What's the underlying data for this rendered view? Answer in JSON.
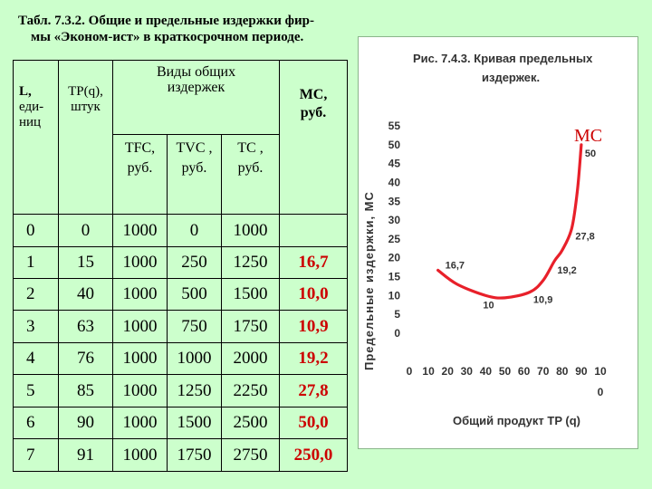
{
  "caption": {
    "line1": "Табл. 7.3.2. Общие и предельные издержки фир-",
    "line2": "мы «Эконом-ист» в краткосрочном периоде."
  },
  "table": {
    "headers": {
      "L_1": "L,",
      "L_2": "еди-",
      "L_3": "ниц",
      "TP_1": "TP(q),",
      "TP_2": "штук",
      "group_1": "Виды общих",
      "group_2": "издержек",
      "TFC_1": "TFC,",
      "TFC_2": "руб.",
      "TVC_1": "TVC ,",
      "TVC_2": "руб.",
      "TC_1": "TC ,",
      "TC_2": "руб.",
      "MC_1": "MC,",
      "MC_2": "руб."
    },
    "rows": [
      {
        "L": "0",
        "TP": "0",
        "TFC": "1000",
        "TVC": "0",
        "TC": "1000",
        "MC": ""
      },
      {
        "L": "1",
        "TP": "15",
        "TFC": "1000",
        "TVC": "250",
        "TC": "1250",
        "MC": "16,7"
      },
      {
        "L": "2",
        "TP": "40",
        "TFC": "1000",
        "TVC": "500",
        "TC": "1500",
        "MC": "10,0"
      },
      {
        "L": "3",
        "TP": "63",
        "TFC": "1000",
        "TVC": "750",
        "TC": "1750",
        "MC": "10,9"
      },
      {
        "L": "4",
        "TP": "76",
        "TFC": "1000",
        "TVC": "1000",
        "TC": "2000",
        "MC": "19,2"
      },
      {
        "L": "5",
        "TP": "85",
        "TFC": "1000",
        "TVC": "1250",
        "TC": "2250",
        "MC": "27,8"
      },
      {
        "L": "6",
        "TP": "90",
        "TFC": "1000",
        "TVC": "1500",
        "TC": "2500",
        "MC": "50,0"
      },
      {
        "L": "7",
        "TP": "91",
        "TFC": "1000",
        "TVC": "1750",
        "TC": "2750",
        "MC": "250,0"
      }
    ]
  },
  "chart": {
    "title_1": "Рис. 7.4.3. Кривая предельных",
    "title_2": "издержек.",
    "curve_label": "MC",
    "colors": {
      "curve": "#e8202a",
      "text": "#333333",
      "label": "#cc0000"
    }
  },
  "chart_data": {
    "type": "line",
    "title": "Рис. 7.4.3. Кривая предельных издержек.",
    "xlabel": "Общий продукт TP (q)",
    "ylabel": "Предельные издержки, MC",
    "xlim": [
      0,
      100
    ],
    "ylim": [
      0,
      55
    ],
    "x_ticks": [
      "0",
      "10",
      "20",
      "30",
      "40",
      "50",
      "60",
      "70",
      "80",
      "90",
      "10",
      "0"
    ],
    "y_ticks": [
      "0",
      "5",
      "10",
      "15",
      "20",
      "25",
      "30",
      "35",
      "40",
      "45",
      "50",
      "55"
    ],
    "series": [
      {
        "name": "MC",
        "x": [
          15,
          25,
          40,
          50,
          63,
          70,
          76,
          80,
          85,
          88,
          90
        ],
        "y": [
          16.7,
          13,
          10,
          9.4,
          10.9,
          14,
          19.2,
          22,
          27.8,
          38,
          50
        ]
      }
    ],
    "annotations": [
      {
        "text": "16,7",
        "x": 15,
        "y": 16.7
      },
      {
        "text": "10",
        "x": 40,
        "y": 10
      },
      {
        "text": "10,9",
        "x": 63,
        "y": 10.9
      },
      {
        "text": "19,2",
        "x": 76,
        "y": 19.2
      },
      {
        "text": "27,8",
        "x": 85,
        "y": 27.8
      },
      {
        "text": "50",
        "x": 90,
        "y": 50
      }
    ]
  }
}
